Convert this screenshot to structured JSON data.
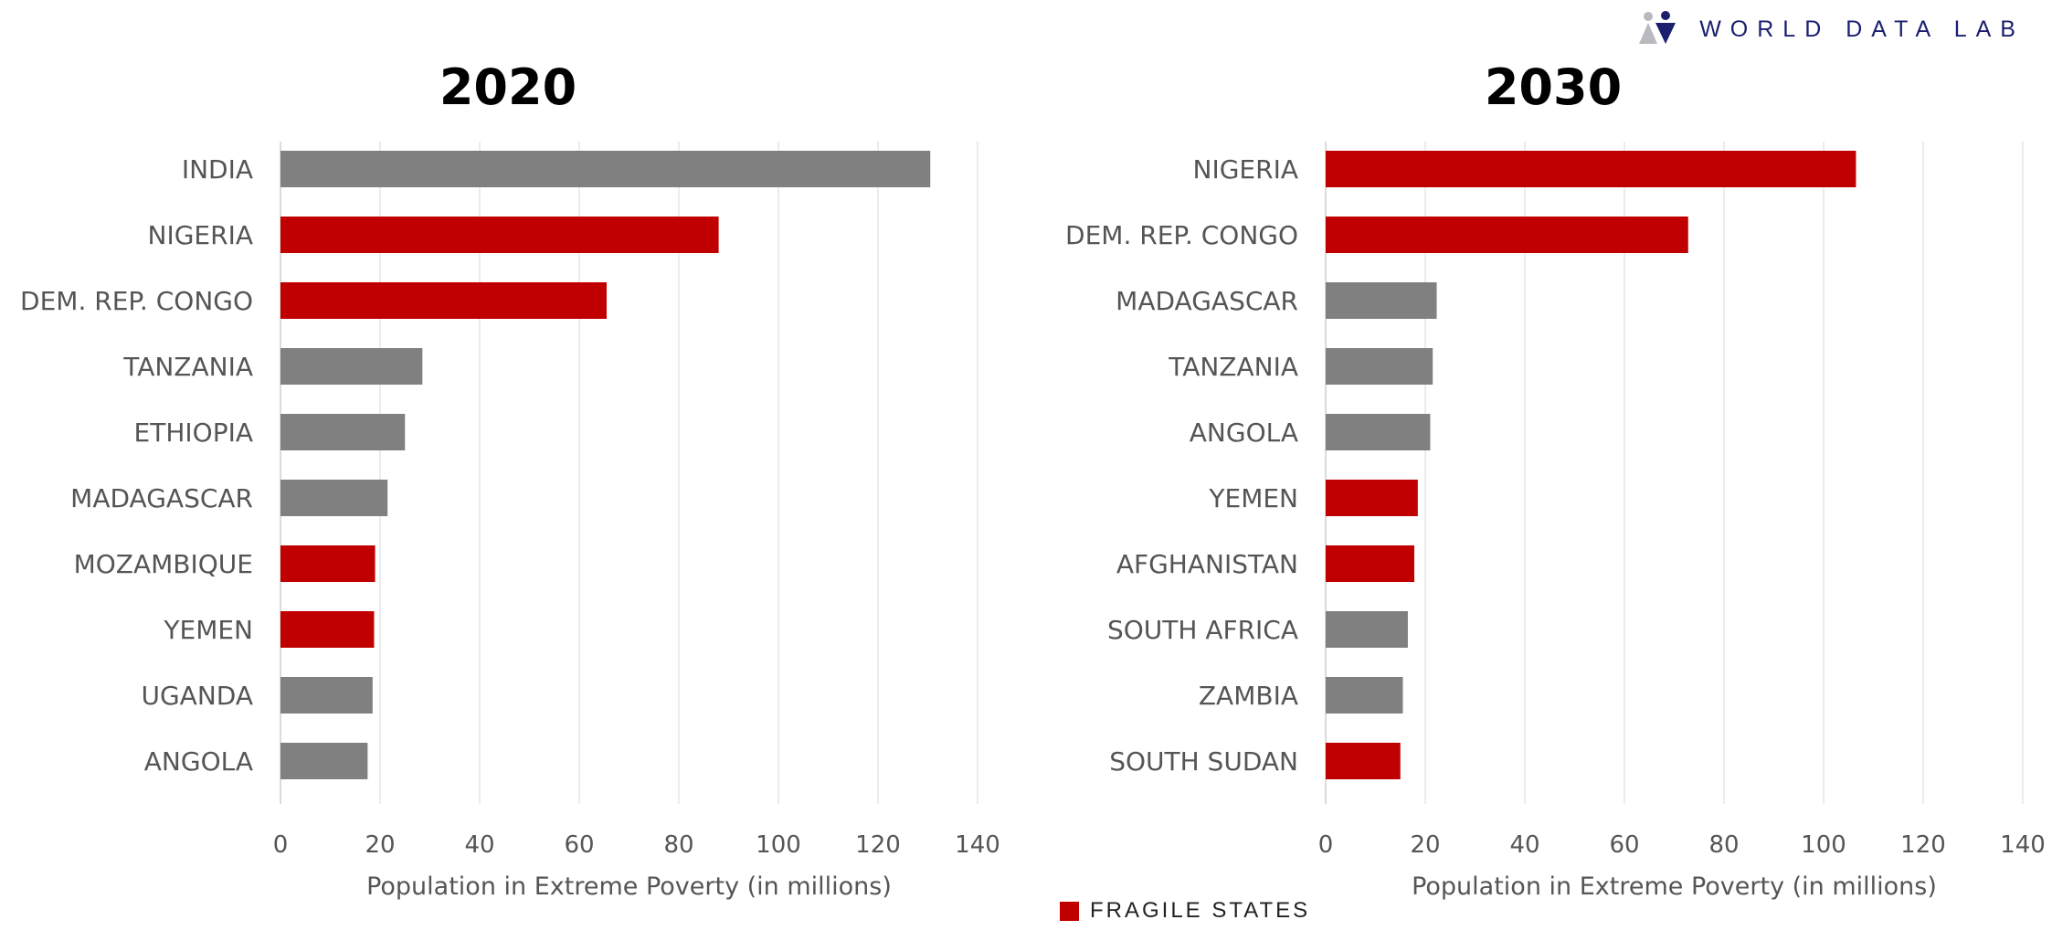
{
  "brand": {
    "name": "WORLD DATA LAB"
  },
  "legend": {
    "label": "FRAGILE STATES"
  },
  "colors": {
    "fragile": "#c00000",
    "other": "#808080",
    "grid": "#e6e6e6",
    "text": "#555555"
  },
  "chart_data": [
    {
      "type": "bar",
      "orientation": "horizontal",
      "title": "2020",
      "xlabel": "Population in Extreme Poverty (in millions)",
      "xlim": [
        0,
        140
      ],
      "xticks": [
        0,
        20,
        40,
        60,
        80,
        100,
        120,
        140
      ],
      "categories": [
        "INDIA",
        "NIGERIA",
        "DEM. REP. CONGO",
        "TANZANIA",
        "ETHIOPIA",
        "MADAGASCAR",
        "MOZAMBIQUE",
        "YEMEN",
        "UGANDA",
        "ANGOLA"
      ],
      "values": [
        130.5,
        88,
        65.5,
        28.5,
        25,
        21.5,
        19,
        18.8,
        18.5,
        17.5
      ],
      "fragile": [
        false,
        true,
        true,
        false,
        false,
        false,
        true,
        true,
        false,
        false
      ]
    },
    {
      "type": "bar",
      "orientation": "horizontal",
      "title": "2030",
      "xlabel": "Population in Extreme Poverty (in millions)",
      "xlim": [
        0,
        140
      ],
      "xticks": [
        0,
        20,
        40,
        60,
        80,
        100,
        120,
        140
      ],
      "categories": [
        "NIGERIA",
        "DEM. REP. CONGO",
        "MADAGASCAR",
        "TANZANIA",
        "ANGOLA",
        "YEMEN",
        "AFGHANISTAN",
        "SOUTH AFRICA",
        "ZAMBIA",
        "SOUTH SUDAN"
      ],
      "values": [
        106.5,
        72.8,
        22.3,
        21.5,
        21,
        18.5,
        17.8,
        16.5,
        15.5,
        15
      ],
      "fragile": [
        true,
        true,
        false,
        false,
        false,
        true,
        true,
        false,
        false,
        true
      ]
    }
  ]
}
